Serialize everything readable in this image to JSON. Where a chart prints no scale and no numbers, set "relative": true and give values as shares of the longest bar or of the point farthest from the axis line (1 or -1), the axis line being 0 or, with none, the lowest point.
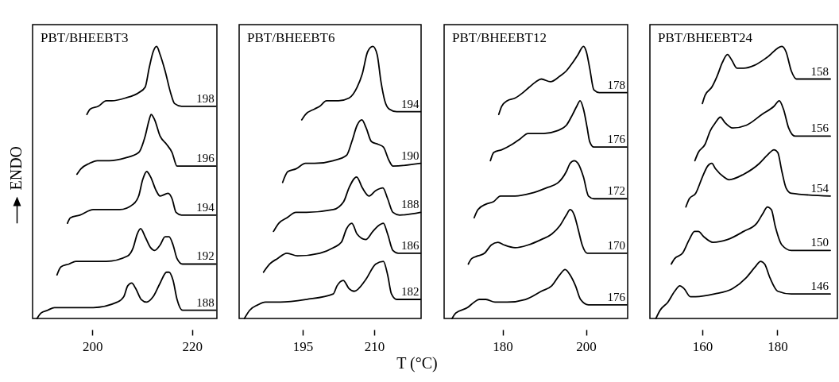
{
  "chart_data": [
    {
      "type": "line",
      "title": "PBT/BHEEBT3",
      "ylabel": "ENDO",
      "relative": true,
      "xlim": [
        188,
        225
      ],
      "xticks": [
        200,
        220
      ],
      "grid": false,
      "legend": false,
      "marker": "none",
      "line_style": "solid",
      "series": [
        {
          "name": "198",
          "color": "#000000",
          "x": [
            198.9,
            199.6,
            201.2,
            202.8,
            203.9,
            206.6,
            209.3,
            210.6,
            211.4,
            212.2,
            212.9,
            213.6,
            214.6,
            215.7,
            216.5,
            217.9,
            224.8
          ],
          "values": [
            0.75,
            0.77,
            0.78,
            0.8,
            0.8,
            0.81,
            0.83,
            0.85,
            0.92,
            0.98,
            1.0,
            0.97,
            0.91,
            0.83,
            0.79,
            0.78,
            0.78
          ]
        },
        {
          "name": "196",
          "color": "#000000",
          "x": [
            196.9,
            197.7,
            199.4,
            201.0,
            203.4,
            206.6,
            209.3,
            210.6,
            211.4,
            211.8,
            212.5,
            213.6,
            214.9,
            216.0,
            217.0,
            217.9,
            224.8
          ],
          "values": [
            0.53,
            0.55,
            0.57,
            0.58,
            0.58,
            0.59,
            0.61,
            0.67,
            0.73,
            0.75,
            0.73,
            0.67,
            0.64,
            0.61,
            0.56,
            0.56,
            0.56
          ]
        },
        {
          "name": "194",
          "color": "#000000",
          "x": [
            195.0,
            195.6,
            197.5,
            200.2,
            205.5,
            208.2,
            209.3,
            210.1,
            210.9,
            211.7,
            212.8,
            213.6,
            215.2,
            216.0,
            216.8,
            217.9,
            224.8
          ],
          "values": [
            0.35,
            0.37,
            0.38,
            0.4,
            0.4,
            0.42,
            0.45,
            0.51,
            0.54,
            0.52,
            0.47,
            0.45,
            0.46,
            0.44,
            0.39,
            0.38,
            0.38
          ]
        },
        {
          "name": "192",
          "color": "#000000",
          "x": [
            192.9,
            193.7,
            195.3,
            196.7,
            198.6,
            202.8,
            207.1,
            208.2,
            209.0,
            209.7,
            210.6,
            211.7,
            212.5,
            213.6,
            214.6,
            215.4,
            216.2,
            217.0,
            218.1,
            224.8
          ],
          "values": [
            0.16,
            0.19,
            0.2,
            0.21,
            0.21,
            0.21,
            0.23,
            0.26,
            0.31,
            0.33,
            0.3,
            0.26,
            0.25,
            0.27,
            0.3,
            0.3,
            0.27,
            0.22,
            0.2,
            0.2
          ]
        },
        {
          "name": "188",
          "color": "#000000",
          "x": [
            188.9,
            189.7,
            191.0,
            192.4,
            194.8,
            200.2,
            205.0,
            206.3,
            207.1,
            207.9,
            208.7,
            209.8,
            210.9,
            212.2,
            213.6,
            214.9,
            215.4,
            216.2,
            217.0,
            218.1,
            224.8
          ],
          "values": [
            0,
            0.02,
            0.03,
            0.04,
            0.04,
            0.04,
            0.06,
            0.08,
            0.12,
            0.13,
            0.11,
            0.07,
            0.06,
            0.08,
            0.13,
            0.17,
            0.17,
            0.14,
            0.07,
            0.03,
            0.03
          ]
        }
      ]
    },
    {
      "type": "line",
      "title": "PBT/BHEEBT6",
      "xlabel": "T (°C)",
      "relative": true,
      "xlim": [
        181.7,
        219.8
      ],
      "xticks": [
        195,
        210
      ],
      "grid": false,
      "legend": false,
      "marker": "none",
      "line_style": "solid",
      "series": [
        {
          "name": "194",
          "color": "#000000",
          "x": [
            194.8,
            195.6,
            197.5,
            198.6,
            200.0,
            202.5,
            204.7,
            206.4,
            207.5,
            208.6,
            209.7,
            210.6,
            211.4,
            212.2,
            213.1,
            214.7,
            219.7
          ],
          "values": [
            0.73,
            0.75,
            0.77,
            0.78,
            0.8,
            0.8,
            0.81,
            0.85,
            0.9,
            0.98,
            1.0,
            0.97,
            0.87,
            0.8,
            0.77,
            0.76,
            0.76
          ]
        },
        {
          "name": "190",
          "color": "#000000",
          "x": [
            190.8,
            191.9,
            193.6,
            195.6,
            197.5,
            201.4,
            204.2,
            205.3,
            206.4,
            207.4,
            208.3,
            209.4,
            210.8,
            211.9,
            213.1,
            213.9,
            219.7
          ],
          "values": [
            0.5,
            0.54,
            0.55,
            0.57,
            0.57,
            0.58,
            0.6,
            0.65,
            0.71,
            0.73,
            0.7,
            0.65,
            0.64,
            0.63,
            0.58,
            0.56,
            0.57
          ]
        },
        {
          "name": "188",
          "color": "#000000",
          "x": [
            188.9,
            190.0,
            191.7,
            193.6,
            195.8,
            201.4,
            203.6,
            204.7,
            206.3,
            207.5,
            208.9,
            210.3,
            211.8,
            212.8,
            213.9,
            215.3,
            219.7
          ],
          "values": [
            0.32,
            0.35,
            0.37,
            0.39,
            0.39,
            0.4,
            0.43,
            0.48,
            0.52,
            0.48,
            0.45,
            0.47,
            0.48,
            0.44,
            0.39,
            0.38,
            0.39
          ]
        },
        {
          "name": "186",
          "color": "#000000",
          "x": [
            186.8,
            188.1,
            189.7,
            191.7,
            193.9,
            198.6,
            201.4,
            203.1,
            204.2,
            205.3,
            206.4,
            208.2,
            209.7,
            210.8,
            211.9,
            212.8,
            213.9,
            215.0,
            219.7
          ],
          "values": [
            0.17,
            0.2,
            0.22,
            0.24,
            0.23,
            0.24,
            0.26,
            0.28,
            0.33,
            0.35,
            0.31,
            0.29,
            0.32,
            0.34,
            0.35,
            0.31,
            0.25,
            0.24,
            0.24
          ]
        },
        {
          "name": "182",
          "color": "#000000",
          "x": [
            182.8,
            183.9,
            185.6,
            187.2,
            190.3,
            195.8,
            201.4,
            202.2,
            203.5,
            204.7,
            205.8,
            208.1,
            210.3,
            211.9,
            212.8,
            213.6,
            214.7,
            219.7
          ],
          "values": [
            0,
            0.03,
            0.05,
            0.06,
            0.06,
            0.07,
            0.09,
            0.12,
            0.14,
            0.11,
            0.1,
            0.14,
            0.2,
            0.21,
            0.16,
            0.09,
            0.07,
            0.07
          ]
        }
      ]
    },
    {
      "type": "line",
      "title": "PBT/BHEEBT12",
      "relative": true,
      "xlim": [
        166,
        210
      ],
      "xticks": [
        180,
        200
      ],
      "grid": false,
      "legend": false,
      "marker": "none",
      "line_style": "solid",
      "series": [
        {
          "name": "178",
          "color": "#000000",
          "x": [
            179.1,
            179.8,
            181.1,
            183.0,
            184.9,
            186.4,
            188.0,
            189.3,
            191.5,
            193.7,
            195.3,
            196.8,
            198.1,
            199.4,
            200.1,
            200.9,
            201.9,
            203.2,
            209.8
          ],
          "values": [
            0.75,
            0.78,
            0.8,
            0.81,
            0.83,
            0.85,
            0.87,
            0.88,
            0.87,
            0.89,
            0.91,
            0.94,
            0.97,
            1.0,
            0.98,
            0.92,
            0.84,
            0.83,
            0.83
          ]
        },
        {
          "name": "176",
          "color": "#000000",
          "x": [
            177.1,
            177.9,
            179.8,
            182.3,
            184.2,
            186.1,
            187.7,
            189.9,
            193.1,
            195.3,
            196.8,
            197.8,
            198.6,
            199.4,
            200.3,
            200.9,
            201.9,
            209.8
          ],
          "values": [
            0.58,
            0.61,
            0.62,
            0.64,
            0.66,
            0.68,
            0.68,
            0.68,
            0.69,
            0.71,
            0.75,
            0.78,
            0.8,
            0.77,
            0.7,
            0.65,
            0.63,
            0.63
          ]
        },
        {
          "name": "172",
          "color": "#000000",
          "x": [
            173.2,
            174.1,
            176.0,
            177.9,
            179.5,
            181.1,
            183.0,
            186.8,
            190.5,
            193.4,
            195.3,
            196.2,
            197.2,
            198.1,
            199.4,
            200.6,
            201.9,
            209.8
          ],
          "values": [
            0.37,
            0.4,
            0.42,
            0.43,
            0.45,
            0.45,
            0.45,
            0.46,
            0.48,
            0.5,
            0.54,
            0.57,
            0.58,
            0.57,
            0.52,
            0.45,
            0.44,
            0.44
          ]
        },
        {
          "name": "170",
          "color": "#000000",
          "x": [
            171.8,
            172.6,
            174.1,
            175.7,
            177.3,
            178.9,
            180.4,
            183.0,
            186.1,
            189.3,
            191.8,
            193.7,
            195.3,
            196.2,
            197.2,
            198.1,
            199.1,
            200.3,
            201.9,
            209.8
          ],
          "values": [
            0.2,
            0.22,
            0.23,
            0.24,
            0.27,
            0.28,
            0.27,
            0.26,
            0.27,
            0.29,
            0.31,
            0.34,
            0.38,
            0.4,
            0.38,
            0.33,
            0.27,
            0.24,
            0.24,
            0.24
          ]
        },
        {
          "name": "176",
          "color": "#000000",
          "x": [
            167.9,
            168.8,
            171.6,
            173.2,
            174.4,
            176.0,
            178.2,
            181.1,
            185.5,
            189.3,
            191.8,
            193.7,
            195.0,
            196.2,
            197.5,
            198.7,
            200.6,
            209.8
          ],
          "values": [
            0,
            0.02,
            0.04,
            0.06,
            0.07,
            0.07,
            0.06,
            0.06,
            0.07,
            0.1,
            0.12,
            0.16,
            0.18,
            0.16,
            0.12,
            0.07,
            0.05,
            0.05
          ]
        }
      ]
    },
    {
      "type": "line",
      "title": "PBT/BHEEBT24",
      "relative": true,
      "xlim": [
        146,
        196
      ],
      "xticks": [
        160,
        180
      ],
      "grid": false,
      "legend": false,
      "marker": "none",
      "line_style": "solid",
      "series": [
        {
          "name": "158",
          "color": "#000000",
          "x": [
            160.0,
            160.7,
            162.5,
            163.9,
            165.3,
            166.7,
            167.8,
            169.2,
            171.0,
            173.8,
            177.3,
            181.2,
            182.3,
            183.7,
            185.1,
            187.2,
            194.1
          ],
          "values": [
            0.79,
            0.82,
            0.85,
            0.89,
            0.94,
            0.97,
            0.95,
            0.92,
            0.92,
            0.93,
            0.96,
            1.0,
            0.98,
            0.91,
            0.88,
            0.88,
            0.88
          ]
        },
        {
          "name": "156",
          "color": "#000000",
          "x": [
            158.0,
            158.9,
            160.7,
            162.1,
            163.5,
            164.8,
            166.0,
            168.1,
            171.7,
            175.9,
            179.1,
            180.5,
            181.6,
            183.0,
            184.7,
            187.2,
            194.1
          ],
          "values": [
            0.58,
            0.61,
            0.64,
            0.69,
            0.72,
            0.74,
            0.72,
            0.7,
            0.71,
            0.75,
            0.78,
            0.8,
            0.77,
            0.7,
            0.67,
            0.67,
            0.67
          ]
        },
        {
          "name": "154",
          "color": "#000000",
          "x": [
            155.6,
            156.5,
            158.2,
            160.0,
            161.4,
            162.5,
            163.5,
            165.7,
            167.1,
            171.0,
            175.2,
            177.3,
            179.1,
            180.1,
            181.2,
            182.3,
            183.7,
            194.1
          ],
          "values": [
            0.41,
            0.44,
            0.46,
            0.52,
            0.56,
            0.57,
            0.55,
            0.52,
            0.51,
            0.53,
            0.57,
            0.6,
            0.62,
            0.61,
            0.54,
            0.48,
            0.46,
            0.45
          ]
        },
        {
          "name": "150",
          "color": "#000000",
          "x": [
            151.7,
            152.6,
            154.7,
            156.5,
            157.9,
            158.9,
            160.4,
            162.8,
            166.7,
            171.0,
            174.5,
            176.3,
            177.3,
            178.4,
            179.4,
            181.2,
            183.7,
            194.1
          ],
          "values": [
            0.2,
            0.22,
            0.24,
            0.29,
            0.32,
            0.32,
            0.3,
            0.28,
            0.29,
            0.32,
            0.35,
            0.39,
            0.41,
            0.4,
            0.34,
            0.27,
            0.25,
            0.25
          ]
        },
        {
          "name": "146",
          "color": "#000000",
          "x": [
            147.6,
            148.7,
            150.8,
            152.6,
            154.0,
            155.1,
            156.8,
            158.2,
            163.2,
            168.1,
            171.7,
            174.1,
            175.5,
            176.6,
            178.0,
            180.1,
            183.7,
            194.1
          ],
          "values": [
            0,
            0.03,
            0.06,
            0.1,
            0.12,
            0.11,
            0.08,
            0.08,
            0.09,
            0.11,
            0.15,
            0.19,
            0.21,
            0.2,
            0.15,
            0.1,
            0.09,
            0.09
          ]
        }
      ]
    }
  ]
}
